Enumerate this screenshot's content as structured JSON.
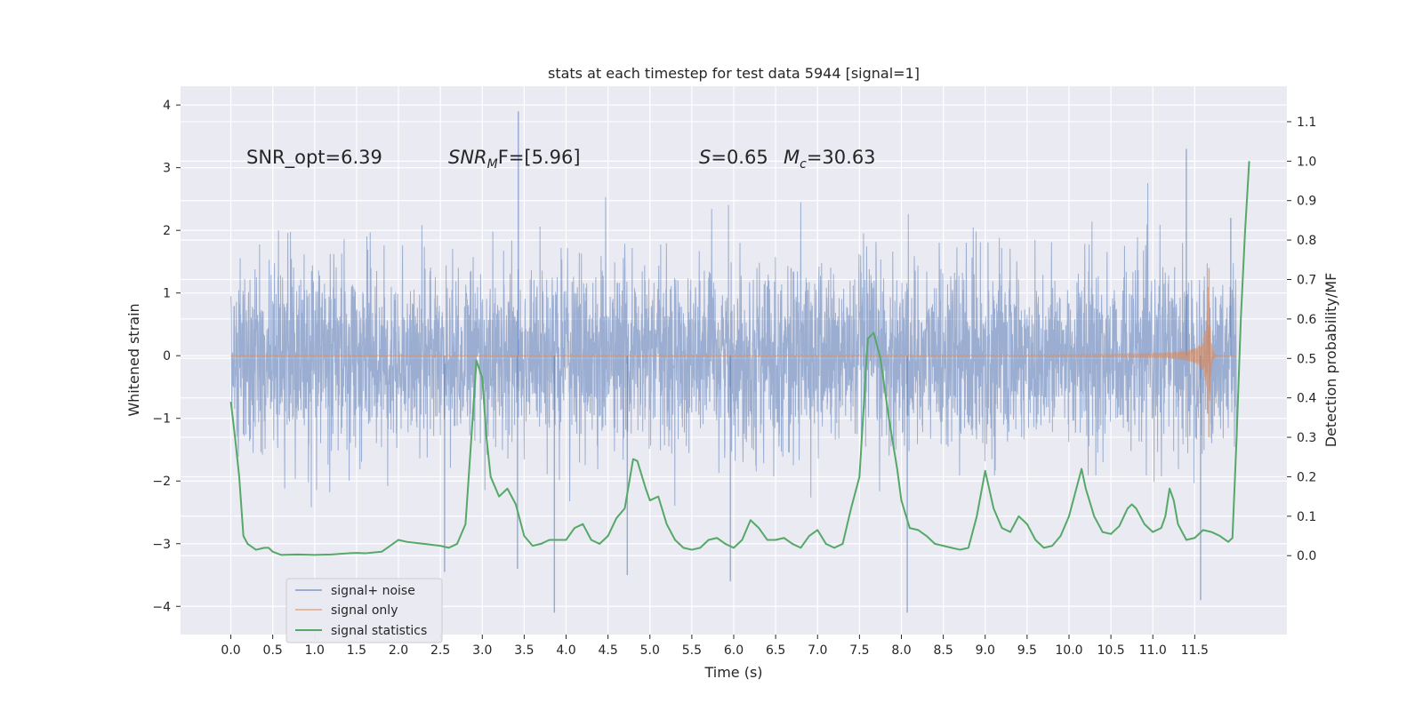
{
  "chart_data": {
    "type": "line",
    "title": "stats at each timestep for test data 5944 [signal=1]",
    "xlabel": "Time (s)",
    "ylabel": "Whitened strain",
    "y2label": "Detection probability/MF",
    "xlim": [
      -0.6,
      12.6
    ],
    "ylim": [
      -4.45,
      4.3
    ],
    "y2lim": [
      -0.2,
      1.19
    ],
    "x_ticks": [
      0.0,
      0.5,
      1.0,
      1.5,
      2.0,
      2.5,
      3.0,
      3.5,
      4.0,
      4.5,
      5.0,
      5.5,
      6.0,
      6.5,
      7.0,
      7.5,
      8.0,
      8.5,
      9.0,
      9.5,
      10.0,
      10.5,
      11.0,
      11.5
    ],
    "x_tick_labels": [
      "0.0",
      "0.5",
      "1.0",
      "1.5",
      "2.0",
      "2.5",
      "3.0",
      "3.5",
      "4.0",
      "4.5",
      "5.0",
      "5.5",
      "6.0",
      "6.5",
      "7.0",
      "7.5",
      "8.0",
      "8.5",
      "9.0",
      "9.5",
      "10.0",
      "10.5",
      "11.0",
      "11.5"
    ],
    "y_ticks": [
      -4,
      -3,
      -2,
      -1,
      0,
      1,
      2,
      3,
      4
    ],
    "y_tick_labels": [
      "−4",
      "−3",
      "−2",
      "−1",
      "0",
      "1",
      "2",
      "3",
      "4"
    ],
    "y2_ticks": [
      0.0,
      0.1,
      0.2,
      0.3,
      0.4,
      0.5,
      0.6,
      0.7,
      0.8,
      0.9,
      1.0,
      1.1
    ],
    "y2_tick_labels": [
      "0.0",
      "0.1",
      "0.2",
      "0.3",
      "0.4",
      "0.5",
      "0.6",
      "0.7",
      "0.8",
      "0.9",
      "1.0",
      "1.1"
    ],
    "grid": true,
    "legend_position": "lower-left",
    "annotations": {
      "snr_opt": "SNR_opt=6.39",
      "snr_mf_main": "SNR",
      "snr_mf_sub": "M",
      "snr_mf_rest": "F=[5.96]",
      "s_label": "S",
      "s_value": "=0.65",
      "mc_label": "M",
      "mc_sub": "c",
      "mc_value": "=30.63"
    },
    "series": [
      {
        "name": "signal+ noise",
        "color": "#4c72b0",
        "axis": "left",
        "x_range": [
          0.0,
          12.0
        ],
        "typical_range": [
          -1.6,
          1.6
        ],
        "peaks": [
          {
            "x": 3.43,
            "y": 3.9
          },
          {
            "x": 11.4,
            "y": 3.3
          },
          {
            "x": 3.42,
            "y": -3.4
          },
          {
            "x": 3.86,
            "y": -4.1
          },
          {
            "x": 8.07,
            "y": -4.1
          },
          {
            "x": 11.57,
            "y": -3.9
          },
          {
            "x": 4.73,
            "y": -3.5
          },
          {
            "x": 5.96,
            "y": -3.6
          },
          {
            "x": 2.55,
            "y": -3.45
          },
          {
            "x": 11.93,
            "y": 2.2
          }
        ]
      },
      {
        "name": "signal only",
        "color": "#dd8452",
        "axis": "left",
        "x_range": [
          0.0,
          12.0
        ],
        "chirp": {
          "merger_x": 11.67,
          "peak_amplitude": 1.4,
          "min_amplitude": -1.3
        }
      },
      {
        "name": "signal statistics",
        "color": "#55a868",
        "axis": "right",
        "points": [
          [
            0.0,
            0.39
          ],
          [
            0.05,
            0.3
          ],
          [
            0.1,
            0.2
          ],
          [
            0.15,
            0.05
          ],
          [
            0.2,
            0.03
          ],
          [
            0.3,
            0.015
          ],
          [
            0.4,
            0.02
          ],
          [
            0.45,
            0.02
          ],
          [
            0.5,
            0.01
          ],
          [
            0.6,
            0.002
          ],
          [
            0.8,
            0.003
          ],
          [
            1.0,
            0.002
          ],
          [
            1.2,
            0.003
          ],
          [
            1.4,
            0.006
          ],
          [
            1.5,
            0.007
          ],
          [
            1.6,
            0.006
          ],
          [
            1.8,
            0.01
          ],
          [
            1.9,
            0.025
          ],
          [
            2.0,
            0.04
          ],
          [
            2.1,
            0.035
          ],
          [
            2.3,
            0.03
          ],
          [
            2.5,
            0.025
          ],
          [
            2.6,
            0.02
          ],
          [
            2.7,
            0.03
          ],
          [
            2.8,
            0.08
          ],
          [
            2.87,
            0.3
          ],
          [
            2.93,
            0.495
          ],
          [
            3.0,
            0.45
          ],
          [
            3.05,
            0.3
          ],
          [
            3.1,
            0.2
          ],
          [
            3.2,
            0.15
          ],
          [
            3.3,
            0.17
          ],
          [
            3.4,
            0.13
          ],
          [
            3.5,
            0.05
          ],
          [
            3.6,
            0.025
          ],
          [
            3.7,
            0.03
          ],
          [
            3.8,
            0.04
          ],
          [
            4.0,
            0.04
          ],
          [
            4.1,
            0.07
          ],
          [
            4.2,
            0.08
          ],
          [
            4.3,
            0.04
          ],
          [
            4.4,
            0.03
          ],
          [
            4.5,
            0.05
          ],
          [
            4.6,
            0.095
          ],
          [
            4.7,
            0.12
          ],
          [
            4.8,
            0.245
          ],
          [
            4.85,
            0.24
          ],
          [
            4.95,
            0.17
          ],
          [
            5.0,
            0.14
          ],
          [
            5.1,
            0.15
          ],
          [
            5.2,
            0.08
          ],
          [
            5.3,
            0.04
          ],
          [
            5.4,
            0.02
          ],
          [
            5.5,
            0.015
          ],
          [
            5.6,
            0.02
          ],
          [
            5.7,
            0.04
          ],
          [
            5.8,
            0.045
          ],
          [
            5.9,
            0.03
          ],
          [
            6.0,
            0.02
          ],
          [
            6.1,
            0.04
          ],
          [
            6.2,
            0.09
          ],
          [
            6.3,
            0.07
          ],
          [
            6.4,
            0.04
          ],
          [
            6.5,
            0.04
          ],
          [
            6.6,
            0.045
          ],
          [
            6.7,
            0.03
          ],
          [
            6.8,
            0.02
          ],
          [
            6.9,
            0.05
          ],
          [
            7.0,
            0.065
          ],
          [
            7.1,
            0.03
          ],
          [
            7.2,
            0.02
          ],
          [
            7.3,
            0.03
          ],
          [
            7.4,
            0.12
          ],
          [
            7.5,
            0.2
          ],
          [
            7.6,
            0.55
          ],
          [
            7.67,
            0.565
          ],
          [
            7.75,
            0.5
          ],
          [
            7.85,
            0.35
          ],
          [
            7.95,
            0.22
          ],
          [
            8.0,
            0.14
          ],
          [
            8.1,
            0.07
          ],
          [
            8.2,
            0.065
          ],
          [
            8.3,
            0.05
          ],
          [
            8.4,
            0.03
          ],
          [
            8.6,
            0.02
          ],
          [
            8.7,
            0.015
          ],
          [
            8.8,
            0.02
          ],
          [
            8.9,
            0.1
          ],
          [
            9.0,
            0.215
          ],
          [
            9.1,
            0.12
          ],
          [
            9.2,
            0.07
          ],
          [
            9.3,
            0.06
          ],
          [
            9.4,
            0.1
          ],
          [
            9.5,
            0.08
          ],
          [
            9.6,
            0.04
          ],
          [
            9.7,
            0.02
          ],
          [
            9.8,
            0.025
          ],
          [
            9.9,
            0.05
          ],
          [
            10.0,
            0.1
          ],
          [
            10.1,
            0.18
          ],
          [
            10.15,
            0.22
          ],
          [
            10.2,
            0.17
          ],
          [
            10.3,
            0.1
          ],
          [
            10.4,
            0.06
          ],
          [
            10.5,
            0.055
          ],
          [
            10.6,
            0.075
          ],
          [
            10.7,
            0.12
          ],
          [
            10.75,
            0.13
          ],
          [
            10.8,
            0.12
          ],
          [
            10.9,
            0.08
          ],
          [
            11.0,
            0.06
          ],
          [
            11.1,
            0.07
          ],
          [
            11.15,
            0.1
          ],
          [
            11.2,
            0.17
          ],
          [
            11.25,
            0.14
          ],
          [
            11.3,
            0.08
          ],
          [
            11.4,
            0.04
          ],
          [
            11.5,
            0.045
          ],
          [
            11.6,
            0.065
          ],
          [
            11.7,
            0.06
          ],
          [
            11.8,
            0.05
          ],
          [
            11.9,
            0.035
          ],
          [
            11.95,
            0.045
          ],
          [
            12.0,
            0.3
          ],
          [
            12.05,
            0.6
          ],
          [
            12.1,
            0.82
          ],
          [
            12.15,
            1.0
          ]
        ]
      }
    ]
  }
}
